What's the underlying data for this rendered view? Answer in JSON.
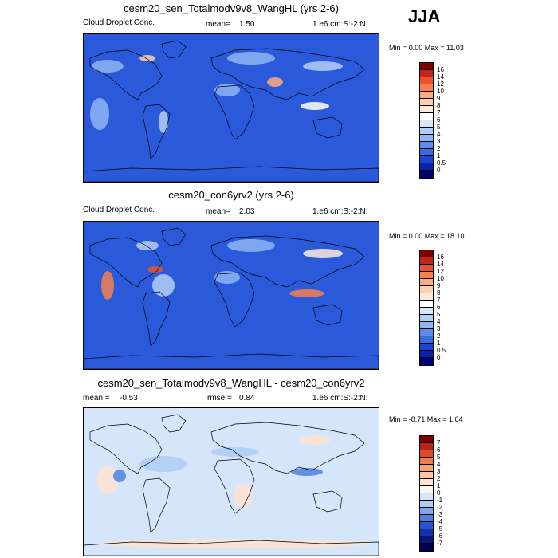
{
  "season": "JJA",
  "panels": [
    {
      "title": "cesm20_sen_Totalmodv9v8_WangHL (yrs 2-6)",
      "variable": "Cloud Droplet Conc.",
      "stat_label": "mean=",
      "stat_value": "1.50",
      "units": "1.e6 cm:S:-2:N:",
      "minmax": "Min =   0.00 Max =  11.03",
      "levels": [
        "16",
        "14",
        "12",
        "10",
        "9",
        "8",
        "7",
        "6",
        "5",
        "4",
        "3",
        "2",
        "1",
        "0.5",
        "0"
      ],
      "colors": [
        "#800000",
        "#c0261c",
        "#e8532f",
        "#f5804d",
        "#fbab7d",
        "#fdcfae",
        "#fbe9dc",
        "#ffffff",
        "#d8e7fb",
        "#b4cff7",
        "#8db5f3",
        "#5d8de8",
        "#3a6ce0",
        "#1b44d4",
        "#0a23a8",
        "#000070"
      ],
      "bg": "#2a5ad9",
      "blobs": "seasonal"
    },
    {
      "title": "cesm20_con6yrv2 (yrs 2-6)",
      "variable": "Cloud Droplet Conc.",
      "stat_label": "mean=",
      "stat_value": "2.03",
      "units": "1.e6 cm:S:-2:N:",
      "minmax": "Min =   0.00 Max =  18.10",
      "levels": [
        "16",
        "14",
        "12",
        "10",
        "9",
        "8",
        "7",
        "6",
        "5",
        "4",
        "3",
        "2",
        "1",
        "0.5",
        "0"
      ],
      "colors": [
        "#800000",
        "#c0261c",
        "#e8532f",
        "#f5804d",
        "#fbab7d",
        "#fdcfae",
        "#fbe9dc",
        "#ffffff",
        "#d8e7fb",
        "#b4cff7",
        "#8db5f3",
        "#5d8de8",
        "#3a6ce0",
        "#1b44d4",
        "#0a23a8",
        "#000070"
      ],
      "bg": "#2a5ad9",
      "blobs": "control"
    },
    {
      "title": "cesm20_sen_Totalmodv9v8_WangHL - cesm20_con6yrv2",
      "variable": "",
      "stat_label": "mean =",
      "stat_value": "-0.53",
      "stat2_label": "rmse =",
      "stat2_value": "0.84",
      "units": "1.e6 cm:S:-2:N:",
      "minmax": "Min =  -8.71 Max =   1.64",
      "levels": [
        "7",
        "6",
        "5",
        "4",
        "3",
        "2",
        "1",
        "0",
        "-1",
        "-2",
        "-3",
        "-4",
        "-5",
        "-6",
        "-7"
      ],
      "colors": [
        "#800000",
        "#b8231a",
        "#e04a2c",
        "#f27a4d",
        "#f8a27a",
        "#fcc5a5",
        "#fde3d2",
        "#fff5ee",
        "#d6e6fa",
        "#aecbf4",
        "#7ea8ec",
        "#4f80e0",
        "#2a55cf",
        "#1530aa",
        "#08157f",
        "#000050"
      ],
      "bg": "#d6e6fa",
      "blobs": "diff"
    }
  ]
}
